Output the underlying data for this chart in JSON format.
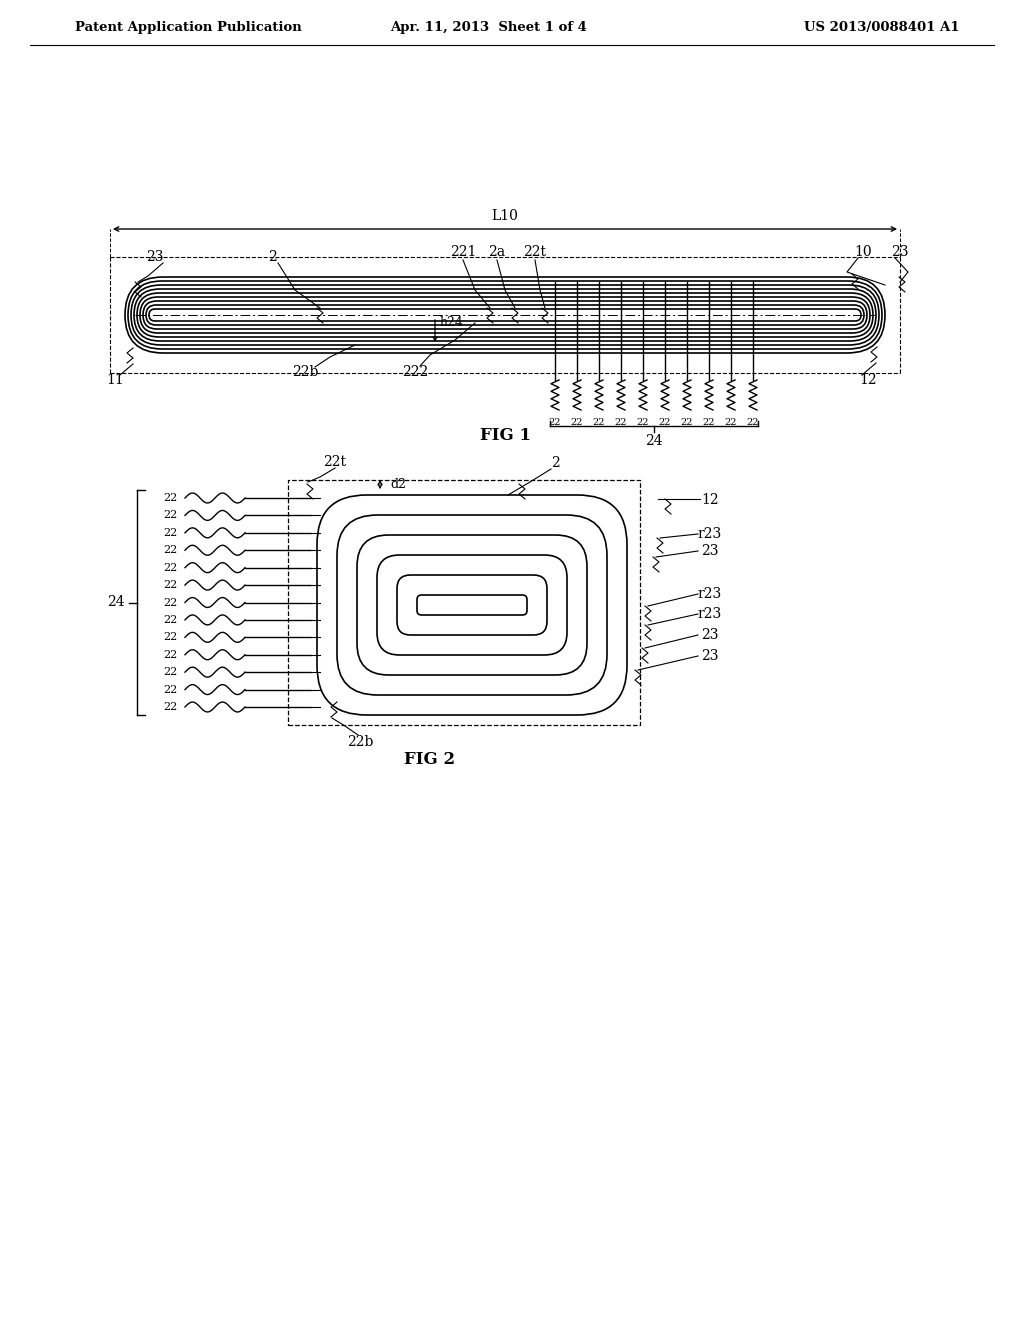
{
  "bg_color": "#ffffff",
  "line_color": "#000000",
  "header_left": "Patent Application Publication",
  "header_mid": "Apr. 11, 2013  Sheet 1 of 4",
  "header_right": "US 2013/0088401 A1",
  "fig1_label": "FIG 1",
  "fig2_label": "FIG 2"
}
